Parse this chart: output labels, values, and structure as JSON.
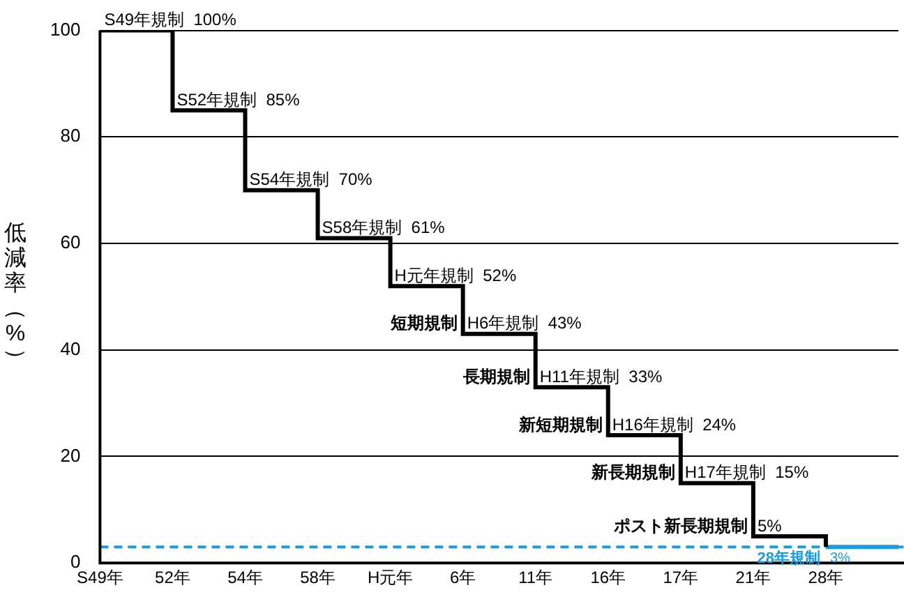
{
  "chart_data": {
    "type": "step",
    "ylabel": "低減率（%）",
    "categories": [
      "S49年",
      "52年",
      "54年",
      "58年",
      "H元年",
      "6年",
      "11年",
      "16年",
      "17年",
      "21年",
      "28年",
      null
    ],
    "series": [
      {
        "values": [
          100,
          85,
          70,
          61,
          52,
          43,
          33,
          24,
          15,
          5,
          3,
          null
        ],
        "color": "#000000"
      },
      {
        "values": [
          null,
          null,
          null,
          null,
          null,
          null,
          null,
          null,
          null,
          null,
          3,
          3
        ],
        "color": "#1a9be0"
      }
    ],
    "ylim": [
      0,
      100
    ],
    "yticks": [
      0,
      20,
      40,
      60,
      80,
      100
    ],
    "grid": "y",
    "legend": false,
    "marker": "none",
    "line_style": "solid",
    "ref_lines": [
      {
        "axis": "y",
        "value": 3,
        "color": "#1a9be0",
        "line_style": "dashed"
      }
    ],
    "annotations": [
      {
        "text": "S49年規制  100%",
        "x": "S49年",
        "y": 100
      },
      {
        "text": "S52年規制  85%",
        "x": "52年",
        "y": 85
      },
      {
        "text": "S54年規制  70%",
        "x": "54年",
        "y": 70
      },
      {
        "text": "S58年規制  61%",
        "x": "58年",
        "y": 61
      },
      {
        "text": "H元年規制  52%",
        "x": "H元年",
        "y": 52
      },
      {
        "text": "H6年規制  43%",
        "x": "6年",
        "y": 43
      },
      {
        "text": "短期規制",
        "x": "6年",
        "y": 43
      },
      {
        "text": "H11年規制  33%",
        "x": "11年",
        "y": 33
      },
      {
        "text": "長期規制",
        "x": "11年",
        "y": 33
      },
      {
        "text": "H16年規制  24%",
        "x": "16年",
        "y": 24
      },
      {
        "text": "新短期規制",
        "x": "16年",
        "y": 24
      },
      {
        "text": "H17年規制  15%",
        "x": "17年",
        "y": 15
      },
      {
        "text": "新長期規制",
        "x": "17年",
        "y": 15
      },
      {
        "text": "5%",
        "x": "21年",
        "y": 5
      },
      {
        "text": "ポスト新長期規制",
        "x": "21年",
        "y": 5
      },
      {
        "text": "3%",
        "x": "28年",
        "y": 3
      },
      {
        "text": "28年規制",
        "x": "28年",
        "y": 3
      }
    ]
  }
}
